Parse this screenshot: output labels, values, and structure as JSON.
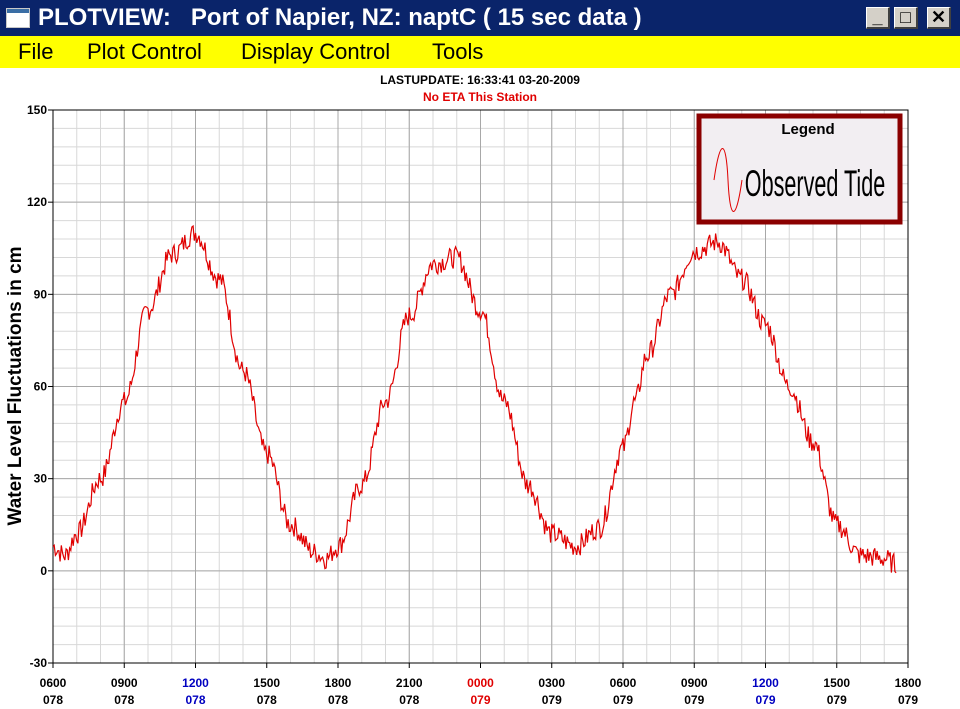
{
  "window": {
    "title": "PLOTVIEW:   Port of Napier, NZ: naptC ( 15 sec data )",
    "minimize_glyph": "_",
    "maximize_glyph": "□",
    "close_glyph": "✕"
  },
  "menu": {
    "items": [
      "File",
      "Plot Control",
      "Display Control",
      "Tools"
    ]
  },
  "header": {
    "last_update": "LASTUPDATE: 16:33:41  03-20-2009",
    "eta": "No ETA This Station"
  },
  "colors": {
    "title_bar": "#0a246a",
    "menu_bar": "#ffff00",
    "series": "#e00000",
    "tick_noon": "#0000c0",
    "tick_midnight": "#e00000",
    "legend_border": "#8b0000",
    "legend_fill": "#f2eef2"
  },
  "chart_data": {
    "type": "line",
    "title": "",
    "ylabel": "Water Level Fluctuations in cm",
    "xlabel": "",
    "ylim": [
      -30,
      150
    ],
    "y_ticks": [
      -30,
      0,
      30,
      60,
      90,
      120,
      150
    ],
    "grid": true,
    "legend": {
      "position": "top-right",
      "title": "Legend",
      "entries": [
        "Observed Tide"
      ]
    },
    "x_ticks": [
      {
        "time": "0600",
        "day": "078",
        "style": "normal"
      },
      {
        "time": "0900",
        "day": "078",
        "style": "normal"
      },
      {
        "time": "1200",
        "day": "078",
        "style": "noon"
      },
      {
        "time": "1500",
        "day": "078",
        "style": "normal"
      },
      {
        "time": "1800",
        "day": "078",
        "style": "normal"
      },
      {
        "time": "2100",
        "day": "078",
        "style": "normal"
      },
      {
        "time": "0000",
        "day": "079",
        "style": "midnight"
      },
      {
        "time": "0300",
        "day": "079",
        "style": "normal"
      },
      {
        "time": "0600",
        "day": "079",
        "style": "normal"
      },
      {
        "time": "0900",
        "day": "079",
        "style": "normal"
      },
      {
        "time": "1200",
        "day": "079",
        "style": "noon"
      },
      {
        "time": "1500",
        "day": "079",
        "style": "normal"
      },
      {
        "time": "1800",
        "day": "079",
        "style": "normal"
      }
    ],
    "series": [
      {
        "name": "Observed Tide",
        "x_hours_from_0600_078": [
          0,
          0.5,
          1,
          2,
          3,
          4,
          5,
          6,
          7,
          8,
          9,
          10,
          11,
          11.5,
          12,
          13,
          14,
          15,
          16,
          17,
          18,
          19,
          20,
          21,
          22,
          23,
          24,
          24.5,
          25,
          26,
          27,
          28,
          29,
          30,
          31,
          32,
          33,
          34,
          35,
          35.5
        ],
        "values": [
          8,
          5,
          12,
          30,
          55,
          85,
          103,
          110,
          95,
          65,
          38,
          15,
          6,
          4,
          8,
          28,
          55,
          83,
          100,
          102,
          85,
          55,
          28,
          12,
          8,
          14,
          40,
          55,
          70,
          90,
          104,
          107,
          95,
          80,
          60,
          42,
          15,
          5,
          4,
          2
        ]
      }
    ]
  }
}
